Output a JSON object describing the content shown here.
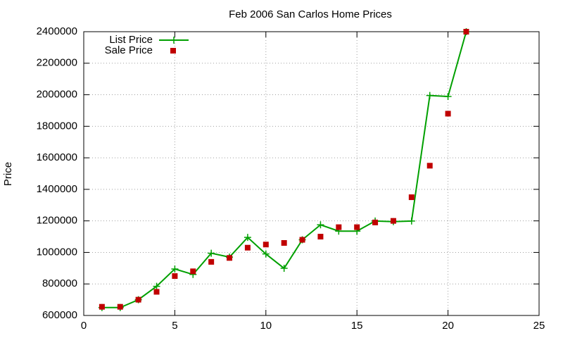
{
  "chart_data": {
    "type": "line",
    "title": "Feb 2006 San Carlos Home Prices",
    "y_label": "Price",
    "x": [
      1,
      2,
      3,
      4,
      5,
      6,
      7,
      8,
      9,
      10,
      11,
      12,
      13,
      14,
      15,
      16,
      17,
      18,
      19,
      20,
      21
    ],
    "series": [
      {
        "name": "List Price",
        "color": "#00a000",
        "style": "linespoints",
        "values": [
          650000,
          650000,
          700000,
          785000,
          895000,
          860000,
          995000,
          970000,
          1095000,
          990000,
          899000,
          1080000,
          1175000,
          1135000,
          1135000,
          1199000,
          1195000,
          1199000,
          1995000,
          1989000,
          2400000
        ]
      },
      {
        "name": "Sale Price",
        "color": "#c00000",
        "style": "points",
        "values": [
          655000,
          655000,
          700000,
          750000,
          850000,
          880000,
          940000,
          965000,
          1030000,
          1050000,
          1060000,
          1080000,
          1100000,
          1160000,
          1160000,
          1190000,
          1200000,
          1350000,
          1550000,
          1880000,
          2400000
        ]
      }
    ],
    "xlim": [
      0,
      25
    ],
    "xticks": [
      0,
      5,
      10,
      15,
      20,
      25
    ],
    "ylim": [
      600000,
      2400000
    ],
    "yticks": [
      600000,
      800000,
      1000000,
      1200000,
      1400000,
      1600000,
      1800000,
      2000000,
      2200000,
      2400000
    ],
    "grid": true,
    "legend": "top-left"
  }
}
